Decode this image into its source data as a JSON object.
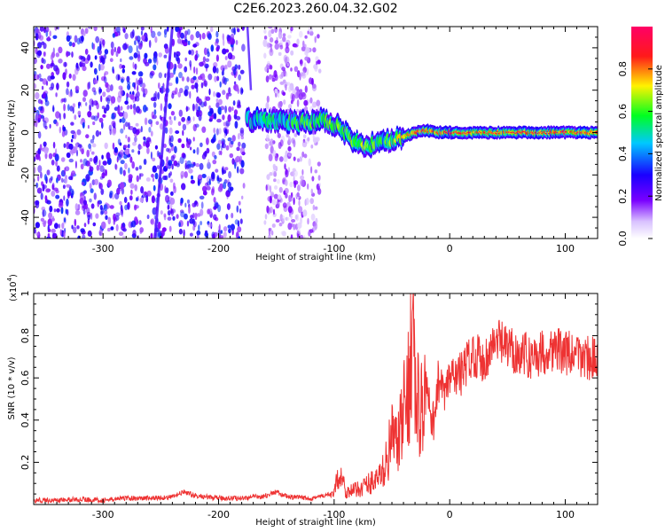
{
  "page": {
    "title": "C2E6.2023.260.04.32.G02"
  },
  "chart_data": [
    {
      "type": "heatmap",
      "xlabel": "Height of straight line (km)",
      "ylabel": "Frequency (Hz)",
      "xlim": [
        -360,
        128
      ],
      "ylim": [
        -50,
        50
      ],
      "xticks": [
        -300,
        -200,
        -100,
        0,
        100
      ],
      "yticks": [
        -40,
        -20,
        0,
        20,
        40
      ],
      "colorbar": {
        "label": "Normalized spectral amplitude",
        "range": [
          0.0,
          1.0
        ],
        "ticks": [
          0.0,
          0.2,
          0.4,
          0.6,
          0.8
        ],
        "colormap": [
          "#ffffff",
          "#9b5cff",
          "#1a00ff",
          "#00e5ff",
          "#00ff20",
          "#fff200",
          "#ff1a1a",
          "#ff0066"
        ]
      },
      "noise_region": {
        "x": [
          -360,
          -112
        ],
        "y": [
          -50,
          50
        ],
        "amplitude": [
          0.1,
          0.35
        ],
        "gap_x": [
          -178,
          -160
        ]
      },
      "streak": {
        "x": [
          -255,
          -240
        ],
        "y": [
          -50,
          50
        ],
        "amplitude": 0.3
      },
      "signal_track": {
        "x": [
          -175,
          -160,
          -140,
          -120,
          -110,
          -100,
          -90,
          -80,
          -70,
          -60,
          -50,
          -40,
          -30,
          -20,
          -10,
          0,
          20,
          40,
          60,
          80,
          100,
          128
        ],
        "y": [
          6,
          6,
          5,
          5,
          6,
          4,
          0,
          -5,
          -6,
          -5,
          -3,
          -2,
          0,
          1,
          0,
          0,
          0,
          0,
          0,
          0,
          0,
          0
        ],
        "amplitude": [
          0.4,
          0.45,
          0.5,
          0.55,
          0.5,
          0.6,
          0.55,
          0.6,
          0.6,
          0.5,
          0.6,
          0.7,
          0.75,
          0.75,
          0.8,
          0.85,
          0.8,
          0.8,
          0.85,
          0.8,
          0.85,
          0.8
        ]
      }
    },
    {
      "type": "line",
      "xlabel": "Height of straight line (km)",
      "ylabel": "SNR (10 * v/v)",
      "yscale_label": "(x10",
      "yscale_exponent": "4",
      "yscale_suffix": ")",
      "xlim": [
        -360,
        128
      ],
      "ylim": [
        0,
        1.0
      ],
      "xticks": [
        -300,
        -200,
        -100,
        0,
        100
      ],
      "yticks": [
        0.2,
        0.4,
        0.6,
        0.8,
        1.0
      ],
      "series": [
        {
          "color": "#ee3333",
          "x": [
            -360,
            -340,
            -320,
            -300,
            -280,
            -260,
            -240,
            -230,
            -220,
            -200,
            -180,
            -160,
            -150,
            -140,
            -120,
            -110,
            -100,
            -95,
            -90,
            -80,
            -70,
            -60,
            -55,
            -50,
            -45,
            -40,
            -35,
            -32,
            -30,
            -25,
            -20,
            -15,
            -10,
            -5,
            0,
            10,
            20,
            30,
            40,
            50,
            60,
            70,
            80,
            90,
            100,
            110,
            120,
            128
          ],
          "y": [
            0.02,
            0.02,
            0.025,
            0.02,
            0.03,
            0.03,
            0.035,
            0.06,
            0.04,
            0.03,
            0.03,
            0.04,
            0.06,
            0.035,
            0.03,
            0.04,
            0.05,
            0.17,
            0.06,
            0.07,
            0.1,
            0.13,
            0.2,
            0.32,
            0.28,
            0.42,
            0.6,
            0.95,
            0.5,
            0.45,
            0.55,
            0.35,
            0.6,
            0.5,
            0.6,
            0.62,
            0.72,
            0.68,
            0.78,
            0.74,
            0.72,
            0.7,
            0.72,
            0.74,
            0.72,
            0.7,
            0.7,
            0.68
          ]
        }
      ]
    }
  ]
}
